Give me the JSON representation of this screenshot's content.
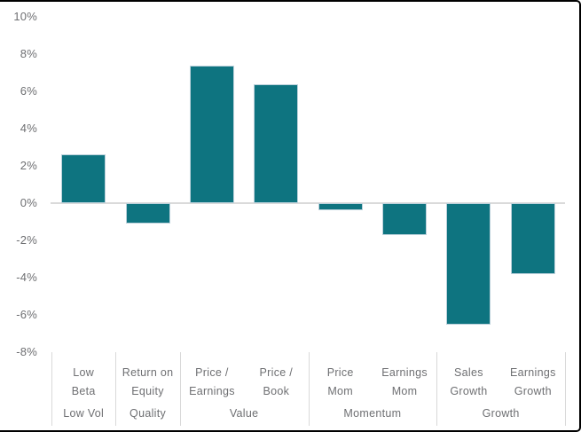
{
  "chart_data": {
    "type": "bar",
    "title": "",
    "unit": "%",
    "categories": [
      "Low Beta",
      "Return on Equity",
      "Price / Earnings",
      "Price / Book",
      "Price Mom",
      "Earnings Mom",
      "Sales Growth",
      "Earnings Growth"
    ],
    "category_label_lines": [
      [
        "Low",
        "Beta"
      ],
      [
        "Return on",
        "Equity"
      ],
      [
        "Price /",
        "Earnings"
      ],
      [
        "Price /",
        "Book"
      ],
      [
        "Price",
        "Mom"
      ],
      [
        "Earnings",
        "Mom"
      ],
      [
        "Sales",
        "Growth"
      ],
      [
        "Earnings",
        "Growth"
      ]
    ],
    "values": [
      2.6,
      -1.1,
      7.4,
      6.4,
      -0.4,
      -1.7,
      -6.5,
      -3.8
    ],
    "groups": [
      {
        "label": "Low Vol",
        "start": 0,
        "end": 1
      },
      {
        "label": "Quality",
        "start": 1,
        "end": 2
      },
      {
        "label": "Value",
        "start": 2,
        "end": 4
      },
      {
        "label": "Momentum",
        "start": 4,
        "end": 6
      },
      {
        "label": "Growth",
        "start": 6,
        "end": 8
      }
    ],
    "y_axis": {
      "min": -8,
      "max": 10,
      "step": 2,
      "tick_labels": [
        "10%",
        "8%",
        "6%",
        "4%",
        "2%",
        "0%",
        "-2%",
        "-4%",
        "-6%",
        "-8%"
      ]
    },
    "grid": false,
    "legend": false,
    "colors": {
      "bar_fill": "#0E7480",
      "bar_border": "#BCD1DB",
      "axis_line": "#DADADA",
      "divider": "#D9D9D9",
      "text": "#6E6F72",
      "frame": "#000000",
      "background": "#FFFFFF"
    }
  }
}
